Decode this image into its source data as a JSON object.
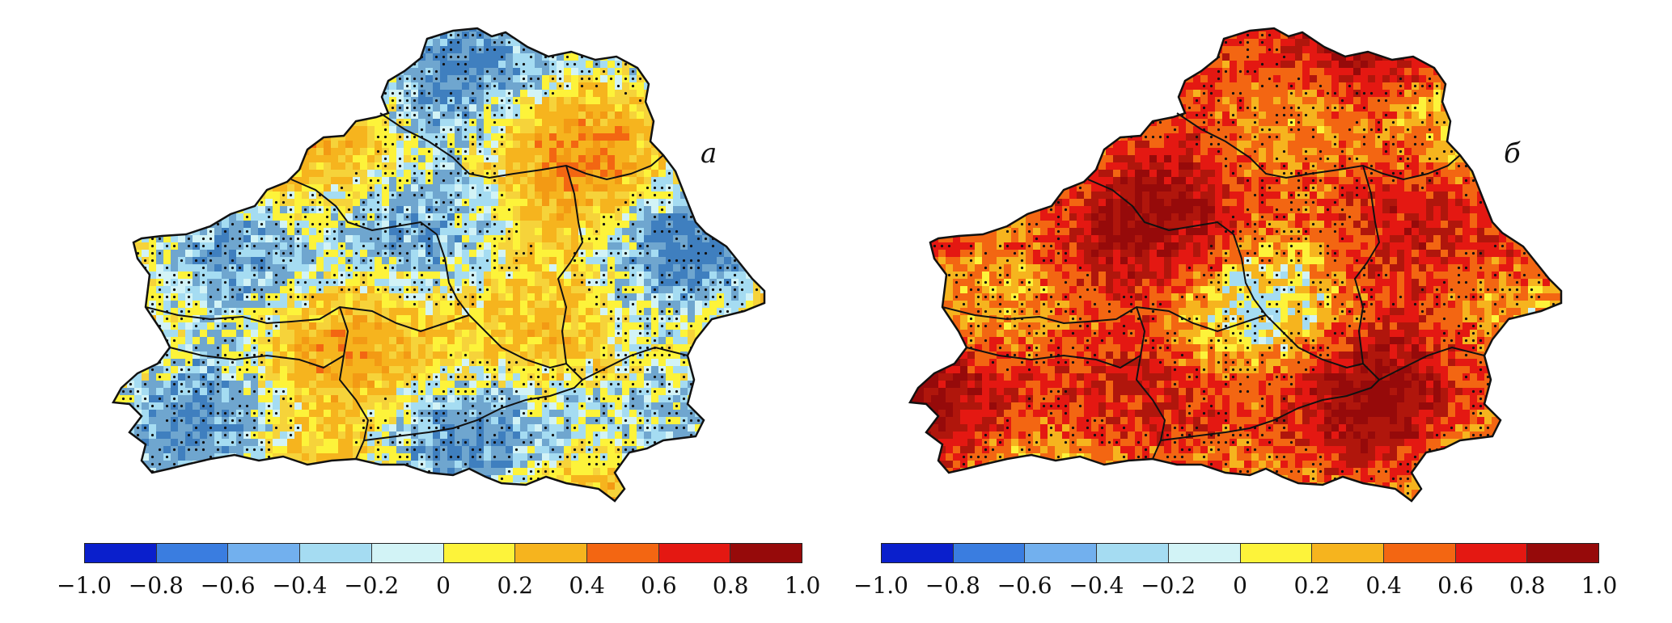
{
  "figure": {
    "panels": [
      {
        "label": "а"
      },
      {
        "label": "б"
      }
    ],
    "colorbar": {
      "colors": [
        "#0a1fcc",
        "#3a7de0",
        "#72b0ee",
        "#a5dcf2",
        "#d2f3f6",
        "#fdf33a",
        "#f6b41e",
        "#f36612",
        "#e41812",
        "#960a0a"
      ],
      "ticks": [
        "−1.0",
        "−0.8",
        "−0.6",
        "−0.4",
        "−0.2",
        "0",
        "0.2",
        "0.4",
        "0.6",
        "0.8",
        "1.0"
      ]
    }
  }
}
